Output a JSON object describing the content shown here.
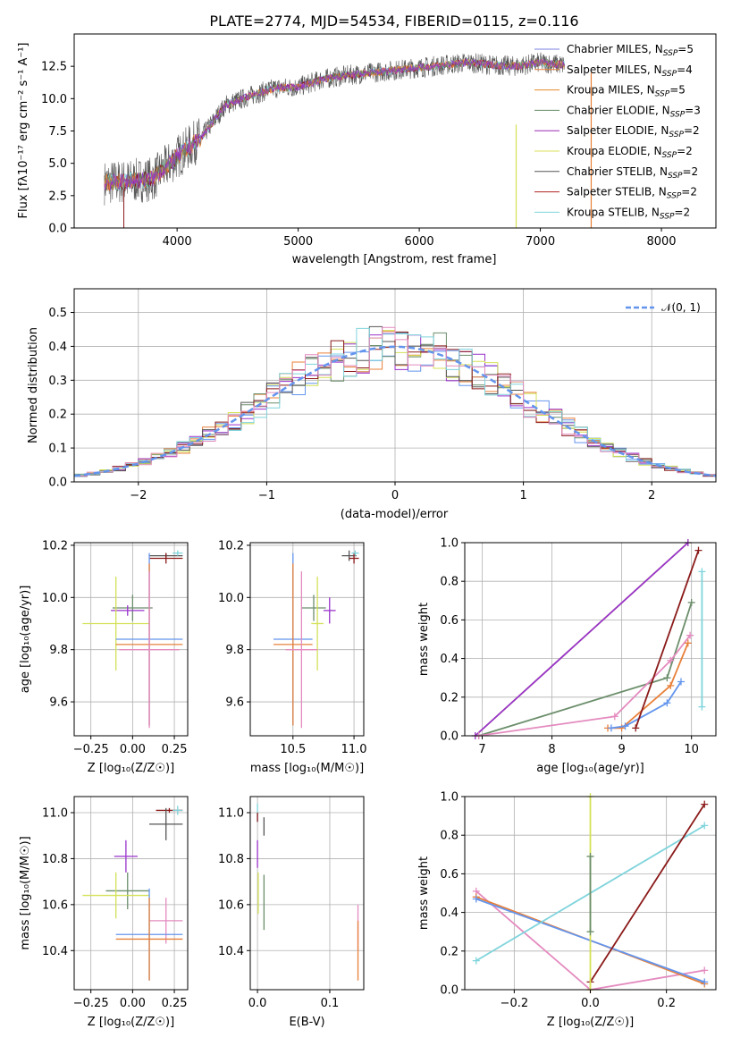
{
  "colors": {
    "Chabrier MILES": "#7b7fe0",
    "Salpeter MILES": "#e8803a",
    "Kroupa MILES": "#e58a2b",
    "Chabrier ELODIE": "#5f8a63",
    "Salpeter ELODIE": "#9b2fb5",
    "Kroupa ELODIE": "#d9e05a",
    "Chabrier STELIB": "#555555",
    "Salpeter STELIB": "#b22222",
    "Kroupa STELIB": "#7fd4dc",
    "blue": "#6495ed",
    "pink": "#e48bbf",
    "green": "#6b8e6b",
    "purple": "#9932cc",
    "yellow": "#d4e157",
    "dark": "#555555",
    "red": "#8b1a1a",
    "cyan": "#7fd4dc",
    "orange": "#e8803a"
  },
  "panel1": {
    "title": "PLATE=2774, MJD=54534, FIBERID=0115, z=0.116",
    "xlabel": "wavelength [Angstrom, rest frame]",
    "ylabel": "Flux [fλ10⁻¹⁷ erg cm⁻² s⁻¹ A⁻¹]",
    "xticks": [
      "4000",
      "5000",
      "6000",
      "7000",
      "8000"
    ],
    "yticks": [
      "0.0",
      "2.5",
      "5.0",
      "7.5",
      "10.0",
      "12.5"
    ],
    "legend": [
      {
        "name": "Chabrier MILES",
        "sub": "SSP",
        "n": "5"
      },
      {
        "name": "Salpeter MILES",
        "sub": "SSP",
        "n": "4"
      },
      {
        "name": "Kroupa MILES",
        "sub": "SSP",
        "n": "5"
      },
      {
        "name": "Chabrier ELODIE",
        "sub": "SSP",
        "n": "3"
      },
      {
        "name": "Salpeter ELODIE",
        "sub": "SSP",
        "n": "2"
      },
      {
        "name": "Kroupa ELODIE",
        "sub": "SSP",
        "n": "2"
      },
      {
        "name": "Chabrier STELIB",
        "sub": "SSP",
        "n": "2"
      },
      {
        "name": "Salpeter STELIB",
        "sub": "SSP",
        "n": "2"
      },
      {
        "name": "Kroupa STELIB",
        "sub": "SSP",
        "n": "2"
      }
    ]
  },
  "panel2": {
    "xlabel": "(data-model)/error",
    "ylabel": "Normed distribution",
    "xticks": [
      "−2",
      "−1",
      "0",
      "1",
      "2"
    ],
    "yticks": [
      "0.0",
      "0.1",
      "0.2",
      "0.3",
      "0.4",
      "0.5"
    ],
    "legend": "𝒩(0, 1)"
  },
  "panel3": {
    "xlabel": "Z [log₁₀(Z/Z☉)]",
    "ylabel": "age  [log₁₀(age/yr)]",
    "xticks": [
      "−0.25",
      "0.00",
      "0.25"
    ],
    "yticks": [
      "9.6",
      "9.8",
      "10.0",
      "10.2"
    ]
  },
  "panel4": {
    "xlabel": "mass [log₁₀(M/M☉)]",
    "xticks": [
      "10.5",
      "11.0"
    ],
    "yticks": [
      "9.6",
      "9.8",
      "10.0",
      "10.2"
    ]
  },
  "panel5": {
    "xlabel": "age  [log₁₀(age/yr)]",
    "ylabel": "mass weight",
    "xticks": [
      "7",
      "8",
      "9",
      "10"
    ],
    "yticks": [
      "0.0",
      "0.2",
      "0.4",
      "0.6",
      "0.8",
      "1.0"
    ]
  },
  "panel6": {
    "xlabel": "Z [log₁₀(Z/Z☉)]",
    "ylabel": "mass [log₁₀(M/M☉)]",
    "xticks": [
      "−0.25",
      "0.00",
      "0.25"
    ],
    "yticks": [
      "10.4",
      "10.6",
      "10.8",
      "11.0"
    ]
  },
  "panel7": {
    "xlabel": "E(B-V)",
    "xticks": [
      "0.0",
      "0.1"
    ],
    "yticks": [
      "10.4",
      "10.6",
      "10.8",
      "11.0"
    ]
  },
  "panel8": {
    "xlabel": "Z [log₁₀(Z/Z☉)]",
    "ylabel": "mass weight",
    "xticks": [
      "−0.2",
      "0.0",
      "0.2"
    ],
    "yticks": [
      "0.0",
      "0.2",
      "0.4",
      "0.6",
      "0.8",
      "1.0"
    ]
  },
  "chart_data": [
    {
      "type": "line",
      "title": "PLATE=2774, MJD=54534, FIBERID=0115, z=0.116",
      "xlabel": "wavelength [Angstrom, rest frame]",
      "ylabel": "Flux [fλ10⁻¹⁷ erg cm⁻² s⁻¹ A⁻¹]",
      "xlim": [
        3150,
        8450
      ],
      "ylim": [
        0,
        15
      ],
      "legend_position": "top-right",
      "spectrum_envelope": {
        "x": [
          3400,
          3600,
          3800,
          4000,
          4200,
          4400,
          4600,
          4800,
          5000,
          5200,
          5400,
          5600,
          5800,
          6000,
          6200,
          6400,
          6600,
          6800,
          7000,
          7200
        ],
        "y": [
          3.5,
          3.6,
          3.8,
          5.5,
          7.0,
          9.5,
          10.2,
          10.8,
          10.9,
          11.5,
          11.8,
          12.0,
          12.2,
          12.4,
          12.6,
          12.8,
          12.6,
          12.5,
          12.8,
          12.6
        ]
      }
    },
    {
      "type": "line",
      "xlabel": "(data-model)/error",
      "ylabel": "Normed distribution",
      "xlim": [
        -2.5,
        2.5
      ],
      "ylim": [
        0,
        0.57
      ],
      "legend_position": "top-right",
      "series": [
        {
          "name": "𝒩(0, 1)",
          "style": "dashed"
        }
      ]
    },
    {
      "type": "scatter",
      "xlabel": "Z [log₁₀(Z/Z☉)]",
      "ylabel": "age  [log₁₀(age/yr)]",
      "xlim": [
        -0.35,
        0.33
      ],
      "ylim": [
        9.47,
        10.21
      ],
      "points": [
        {
          "color": "dark",
          "x": 0.2,
          "y": 10.16,
          "xerr": 0.1,
          "yerr": 0.01
        },
        {
          "color": "red",
          "x": 0.2,
          "y": 10.15,
          "xerr": 0.1,
          "yerr": 0.02
        },
        {
          "color": "cyan",
          "x": 0.27,
          "y": 10.17,
          "xerr": 0.03,
          "yerr": 0.01
        },
        {
          "color": "green",
          "x": 0.0,
          "y": 9.96,
          "xerr": 0.12,
          "yerr": 0.05
        },
        {
          "color": "purple",
          "x": -0.03,
          "y": 9.95,
          "xerr": 0.1,
          "yerr": 0.02
        },
        {
          "color": "yellow",
          "x": -0.1,
          "y": 9.9,
          "xerr": 0.2,
          "yerr": 0.18
        },
        {
          "color": "blue",
          "x": 0.1,
          "y": 9.84,
          "xerr": 0.2,
          "yerr": 0.33
        },
        {
          "color": "orange",
          "x": 0.1,
          "y": 9.82,
          "xerr": 0.2,
          "yerr": 0.31
        },
        {
          "color": "pink",
          "x": 0.1,
          "y": 9.8,
          "xerr": 0.18,
          "yerr": 0.3
        }
      ]
    },
    {
      "type": "scatter",
      "xlabel": "mass [log₁₀(M/M☉)]",
      "xlim": [
        10.15,
        11.08
      ],
      "ylim": [
        9.47,
        10.21
      ],
      "points": [
        {
          "color": "dark",
          "x": 10.96,
          "y": 10.16,
          "xerr": 0.06,
          "yerr": 0.02
        },
        {
          "color": "red",
          "x": 11.0,
          "y": 10.15,
          "xerr": 0.04,
          "yerr": 0.02
        },
        {
          "color": "cyan",
          "x": 11.01,
          "y": 10.17,
          "xerr": 0.03,
          "yerr": 0.01
        },
        {
          "color": "green",
          "x": 10.67,
          "y": 9.96,
          "xerr": 0.1,
          "yerr": 0.05
        },
        {
          "color": "yellow",
          "x": 10.7,
          "y": 9.9,
          "xerr": 0.05,
          "yerr": 0.18
        },
        {
          "color": "purple",
          "x": 10.8,
          "y": 9.95,
          "xerr": 0.05,
          "yerr": 0.05
        },
        {
          "color": "blue",
          "x": 10.5,
          "y": 9.84,
          "xerr": 0.16,
          "yerr": 0.33
        },
        {
          "color": "orange",
          "x": 10.5,
          "y": 9.82,
          "xerr": 0.16,
          "yerr": 0.31
        },
        {
          "color": "pink",
          "x": 10.57,
          "y": 9.8,
          "xerr": 0.13,
          "yerr": 0.3
        }
      ]
    },
    {
      "type": "line",
      "xlabel": "age  [log₁₀(age/yr)]",
      "ylabel": "mass weight",
      "xlim": [
        6.75,
        10.35
      ],
      "ylim": [
        0,
        1
      ],
      "series": [
        {
          "color": "yellow",
          "x": [
            6.9,
            9.95
          ],
          "y": [
            0.0,
            1.0
          ]
        },
        {
          "color": "purple",
          "x": [
            6.9,
            9.95
          ],
          "y": [
            0.0,
            1.0
          ]
        },
        {
          "color": "green",
          "x": [
            6.95,
            9.65,
            10.0
          ],
          "y": [
            0.0,
            0.3,
            0.69
          ]
        },
        {
          "color": "pink",
          "x": [
            6.95,
            8.9,
            9.7,
            9.98
          ],
          "y": [
            0.0,
            0.1,
            0.39,
            0.52
          ]
        },
        {
          "color": "orange",
          "x": [
            8.8,
            9.0,
            9.7,
            9.95
          ],
          "y": [
            0.04,
            0.04,
            0.26,
            0.48
          ]
        },
        {
          "color": "blue",
          "x": [
            8.85,
            9.05,
            9.65,
            9.85
          ],
          "y": [
            0.04,
            0.05,
            0.17,
            0.28
          ]
        },
        {
          "color": "red",
          "x": [
            9.2,
            10.1
          ],
          "y": [
            0.04,
            0.96
          ]
        },
        {
          "color": "cyan",
          "x": [
            10.15,
            10.15
          ],
          "y": [
            0.15,
            0.85
          ]
        }
      ]
    },
    {
      "type": "scatter",
      "xlabel": "Z [log₁₀(Z/Z☉)]",
      "ylabel": "mass [log₁₀(M/M☉)]",
      "xlim": [
        -0.35,
        0.33
      ],
      "ylim": [
        10.23,
        11.07
      ],
      "points": [
        {
          "color": "red",
          "x": 0.22,
          "y": 11.01,
          "xerr": 0.08,
          "yerr": 0.01
        },
        {
          "color": "cyan",
          "x": 0.27,
          "y": 11.01,
          "xerr": 0.03,
          "yerr": 0.02
        },
        {
          "color": "dark",
          "x": 0.2,
          "y": 10.95,
          "xerr": 0.1,
          "yerr": 0.07
        },
        {
          "color": "purple",
          "x": -0.04,
          "y": 10.81,
          "xerr": 0.07,
          "yerr": 0.07
        },
        {
          "color": "green",
          "x": -0.03,
          "y": 10.66,
          "xerr": 0.13,
          "yerr": 0.08
        },
        {
          "color": "yellow",
          "x": -0.1,
          "y": 10.64,
          "xerr": 0.2,
          "yerr": 0.1
        },
        {
          "color": "pink",
          "x": 0.2,
          "y": 10.53,
          "xerr": 0.1,
          "yerr": 0.1
        },
        {
          "color": "blue",
          "x": 0.1,
          "y": 10.47,
          "xerr": 0.2,
          "yerr": 0.2
        },
        {
          "color": "orange",
          "x": 0.1,
          "y": 10.45,
          "xerr": 0.2,
          "yerr": 0.18
        }
      ]
    },
    {
      "type": "scatter",
      "xlabel": "E(B-V)",
      "xlim": [
        -0.01,
        0.147
      ],
      "ylim": [
        10.23,
        11.07
      ],
      "points": [
        {
          "color": "cyan",
          "x": 0.0,
          "y": 11.0,
          "yerr": 0.04
        },
        {
          "color": "red",
          "x": 0.0,
          "y": 10.98,
          "yerr": 0.02
        },
        {
          "color": "dark",
          "x": 0.009,
          "y": 10.94,
          "yerr": 0.04
        },
        {
          "color": "purple",
          "x": 0.0,
          "y": 10.82,
          "yerr": 0.06
        },
        {
          "color": "yellow",
          "x": 0.001,
          "y": 10.65,
          "yerr": 0.09
        },
        {
          "color": "green",
          "x": 0.009,
          "y": 10.61,
          "yerr": 0.12
        },
        {
          "color": "pink",
          "x": 0.139,
          "y": 10.5,
          "yerr": 0.1
        },
        {
          "color": "orange",
          "x": 0.139,
          "y": 10.4,
          "yerr": 0.13
        }
      ]
    },
    {
      "type": "line",
      "xlabel": "Z [log₁₀(Z/Z☉)]",
      "ylabel": "mass weight",
      "xlim": [
        -0.33,
        0.33
      ],
      "ylim": [
        0,
        1
      ],
      "series": [
        {
          "color": "pink",
          "x": [
            -0.3,
            0.0,
            0.3
          ],
          "y": [
            0.51,
            0.0,
            0.1
          ]
        },
        {
          "color": "orange",
          "x": [
            -0.3,
            0.3
          ],
          "y": [
            0.48,
            0.03
          ]
        },
        {
          "color": "blue",
          "x": [
            -0.3,
            0.3
          ],
          "y": [
            0.47,
            0.04
          ]
        },
        {
          "color": "cyan",
          "x": [
            -0.3,
            0.3
          ],
          "y": [
            0.15,
            0.85
          ]
        },
        {
          "color": "red",
          "x": [
            0.0,
            0.3
          ],
          "y": [
            0.04,
            0.96
          ]
        },
        {
          "color": "yellow",
          "x": [
            0.0,
            0.0
          ],
          "y": [
            0.0,
            1.0
          ]
        },
        {
          "color": "green",
          "x": [
            0.0,
            0.0
          ],
          "y": [
            0.3,
            0.69
          ]
        }
      ]
    }
  ]
}
